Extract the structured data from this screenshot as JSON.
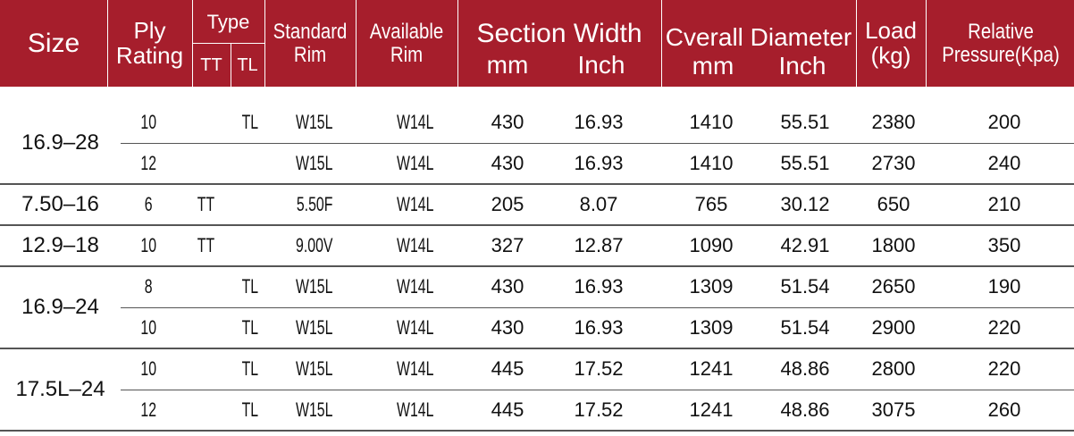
{
  "header": {
    "size": "Size",
    "ply_rating": "Ply Rating",
    "type": "Type",
    "type_tt": "TT",
    "type_tl": "TL",
    "standard_rim": "Standard Rim",
    "available_rim": "Available Rim",
    "section_width": "Section Width",
    "section_mm": "mm",
    "section_inch": "Inch",
    "overall_diameter": "Cverall Diameter",
    "overall_mm": "mm",
    "overall_inch": "Inch",
    "load": "Load (kg)",
    "relative_pressure": "Relative Pressure(Kpa)"
  },
  "groups": [
    {
      "size": "16.9–28",
      "rows": [
        [
          "10",
          null,
          "TL",
          "W15L",
          "W14L",
          "430",
          "16.93",
          "1410",
          "55.51",
          "2380",
          "200"
        ],
        [
          "12",
          null,
          null,
          "W15L",
          "W14L",
          "430",
          "16.93",
          "1410",
          "55.51",
          "2730",
          "240"
        ]
      ]
    },
    {
      "size": "7.50–16",
      "rows": [
        [
          "6",
          "TT",
          null,
          "5.50F",
          "W14L",
          "205",
          "8.07",
          "765",
          "30.12",
          "650",
          "210"
        ]
      ]
    },
    {
      "size": "12.9–18",
      "rows": [
        [
          "10",
          "TT",
          null,
          "9.00V",
          "W14L",
          "327",
          "12.87",
          "1090",
          "42.91",
          "1800",
          "350"
        ]
      ]
    },
    {
      "size": "16.9–24",
      "rows": [
        [
          "8",
          null,
          "TL",
          "W15L",
          "W14L",
          "430",
          "16.93",
          "1309",
          "51.54",
          "2650",
          "190"
        ],
        [
          "10",
          null,
          "TL",
          "W15L",
          "W14L",
          "430",
          "16.93",
          "1309",
          "51.54",
          "2900",
          "220"
        ]
      ]
    },
    {
      "size": "17.5L–24",
      "rows": [
        [
          "10",
          null,
          "TL",
          "W15L",
          "W14L",
          "445",
          "17.52",
          "1241",
          "48.86",
          "2800",
          "220"
        ],
        [
          "12",
          null,
          "TL",
          "W15L",
          "W14L",
          "445",
          "17.52",
          "1241",
          "48.86",
          "3075",
          "260"
        ]
      ]
    }
  ]
}
